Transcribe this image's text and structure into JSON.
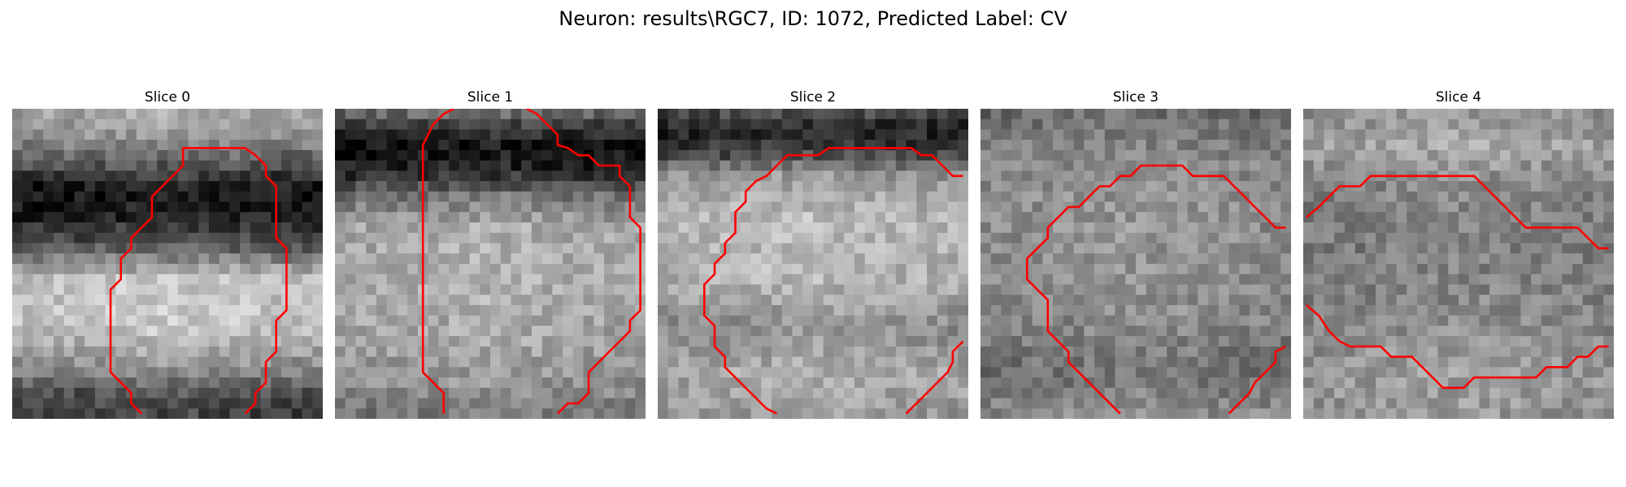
{
  "figure": {
    "title": "Neuron: results\\RGC7, ID: 1072, Predicted Label: CV",
    "contour_color": "#ff0000",
    "image_colormap": "gray"
  },
  "panels": [
    {
      "title": "Slice 0",
      "bands": [
        {
          "y": 0.0,
          "v": 175
        },
        {
          "y": 0.1,
          "v": 150
        },
        {
          "y": 0.18,
          "v": 90
        },
        {
          "y": 0.26,
          "v": 30
        },
        {
          "y": 0.34,
          "v": 35
        },
        {
          "y": 0.44,
          "v": 90
        },
        {
          "y": 0.55,
          "v": 200
        },
        {
          "y": 0.7,
          "v": 205
        },
        {
          "y": 0.83,
          "v": 150
        },
        {
          "y": 0.92,
          "v": 85
        },
        {
          "y": 1.0,
          "v": 70
        }
      ],
      "contours": [
        [
          [
            12.5,
            29.5
          ],
          [
            11.5,
            28.5
          ],
          [
            11.5,
            27.5
          ],
          [
            10.5,
            26.5
          ],
          [
            9.5,
            25.5
          ],
          [
            9.5,
            24.5
          ],
          [
            9.5,
            23.5
          ],
          [
            9.5,
            22.5
          ],
          [
            9.5,
            21.5
          ],
          [
            9.5,
            20.5
          ],
          [
            9.5,
            19.5
          ],
          [
            9.5,
            18.5
          ],
          [
            9.5,
            17.5
          ],
          [
            10.5,
            16.5
          ],
          [
            10.5,
            15.5
          ],
          [
            10.5,
            14.5
          ],
          [
            11.5,
            13.5
          ],
          [
            11.5,
            12.5
          ],
          [
            12.5,
            11.5
          ],
          [
            13.5,
            10.5
          ],
          [
            13.5,
            9.5
          ],
          [
            13.5,
            8.5
          ],
          [
            14.5,
            7.5
          ],
          [
            15.5,
            6.5
          ],
          [
            16.5,
            5.5
          ],
          [
            16.5,
            3.8
          ],
          [
            20.5,
            3.8
          ],
          [
            22.5,
            3.8
          ],
          [
            23.5,
            4.5
          ],
          [
            24.5,
            5.5
          ],
          [
            24.5,
            6.5
          ],
          [
            25.5,
            7.5
          ],
          [
            25.5,
            8.5
          ],
          [
            25.5,
            9.5
          ],
          [
            25.5,
            10.5
          ],
          [
            25.5,
            11.5
          ],
          [
            25.5,
            12.5
          ],
          [
            26.5,
            13.5
          ],
          [
            26.5,
            14.5
          ],
          [
            26.5,
            15.5
          ],
          [
            26.5,
            16.5
          ],
          [
            26.5,
            17.5
          ],
          [
            26.5,
            18.5
          ],
          [
            26.5,
            19.5
          ],
          [
            25.5,
            20.5
          ],
          [
            25.5,
            21.5
          ],
          [
            25.5,
            22.5
          ],
          [
            25.5,
            23.5
          ],
          [
            24.5,
            24.5
          ],
          [
            24.5,
            25.5
          ],
          [
            24.5,
            26.5
          ],
          [
            23.5,
            27.5
          ],
          [
            23.5,
            28.5
          ],
          [
            22.5,
            29.5
          ]
        ]
      ]
    },
    {
      "title": "Slice 1",
      "bands": [
        {
          "y": 0.0,
          "v": 130
        },
        {
          "y": 0.05,
          "v": 70
        },
        {
          "y": 0.12,
          "v": 25
        },
        {
          "y": 0.2,
          "v": 40
        },
        {
          "y": 0.28,
          "v": 120
        },
        {
          "y": 0.38,
          "v": 175
        },
        {
          "y": 0.55,
          "v": 180
        },
        {
          "y": 0.75,
          "v": 170
        },
        {
          "y": 0.9,
          "v": 150
        },
        {
          "y": 1.0,
          "v": 120
        }
      ],
      "contours": [
        [
          [
            10.5,
            29.5
          ],
          [
            10.5,
            27.5
          ],
          [
            9.5,
            26.5
          ],
          [
            8.5,
            25.5
          ],
          [
            8.5,
            23.5
          ],
          [
            8.5,
            20.5
          ],
          [
            8.5,
            15.5
          ],
          [
            8.5,
            10.5
          ],
          [
            8.5,
            5.5
          ],
          [
            8.5,
            3.5
          ],
          [
            9.5,
            1.5
          ],
          [
            10.5,
            0.5
          ],
          [
            11.5,
            0.0
          ]
        ],
        [
          [
            18.5,
            0.0
          ],
          [
            19.5,
            0.5
          ],
          [
            20.5,
            1.5
          ],
          [
            21.5,
            2.5
          ],
          [
            21.5,
            3.5
          ],
          [
            22.5,
            3.8
          ],
          [
            23.5,
            4.5
          ],
          [
            24.5,
            4.5
          ],
          [
            25.5,
            5.5
          ],
          [
            27.5,
            5.5
          ],
          [
            27.5,
            6.5
          ],
          [
            28.5,
            7.5
          ],
          [
            28.5,
            8.5
          ],
          [
            28.5,
            9.5
          ],
          [
            28.5,
            10.5
          ],
          [
            29.5,
            11.5
          ],
          [
            29.5,
            12.5
          ],
          [
            29.5,
            13.5
          ],
          [
            29.5,
            14.5
          ],
          [
            29.5,
            15.5
          ],
          [
            29.5,
            16.5
          ],
          [
            29.5,
            17.5
          ],
          [
            29.5,
            18.5
          ],
          [
            29.5,
            19.5
          ],
          [
            28.5,
            20.5
          ],
          [
            28.5,
            21.5
          ],
          [
            27.5,
            22.5
          ],
          [
            26.5,
            23.5
          ],
          [
            25.5,
            24.5
          ],
          [
            24.5,
            25.5
          ],
          [
            24.5,
            26.5
          ],
          [
            24.5,
            27.5
          ],
          [
            23.5,
            28.5
          ],
          [
            22.5,
            28.5
          ],
          [
            21.5,
            29.5
          ]
        ]
      ]
    },
    {
      "title": "Slice 2",
      "bands": [
        {
          "y": 0.0,
          "v": 90
        },
        {
          "y": 0.07,
          "v": 40
        },
        {
          "y": 0.14,
          "v": 70
        },
        {
          "y": 0.22,
          "v": 160
        },
        {
          "y": 0.35,
          "v": 190
        },
        {
          "y": 0.55,
          "v": 185
        },
        {
          "y": 0.7,
          "v": 150
        },
        {
          "y": 0.85,
          "v": 175
        },
        {
          "y": 1.0,
          "v": 160
        }
      ],
      "contours": [
        [
          [
            11.5,
            29.5
          ],
          [
            10.5,
            29.0
          ],
          [
            9.5,
            28.0
          ],
          [
            8.5,
            27.0
          ],
          [
            7.5,
            26.0
          ],
          [
            6.5,
            25.0
          ],
          [
            6.5,
            24.0
          ],
          [
            5.5,
            23.0
          ],
          [
            5.5,
            22.0
          ],
          [
            5.5,
            21.0
          ],
          [
            4.5,
            20.0
          ],
          [
            4.5,
            19.0
          ],
          [
            4.5,
            18.0
          ],
          [
            4.5,
            17.0
          ],
          [
            5.5,
            16.0
          ],
          [
            5.5,
            15.0
          ],
          [
            6.5,
            14.0
          ],
          [
            6.5,
            13.0
          ],
          [
            7.5,
            12.0
          ],
          [
            7.5,
            11.0
          ],
          [
            7.5,
            10.0
          ],
          [
            8.5,
            9.0
          ],
          [
            8.5,
            8.0
          ],
          [
            9.5,
            7.0
          ],
          [
            10.5,
            6.5
          ],
          [
            11.5,
            5.5
          ],
          [
            12.5,
            4.5
          ],
          [
            15.5,
            4.5
          ],
          [
            16.5,
            3.8
          ],
          [
            17.5,
            3.8
          ],
          [
            24.5,
            3.8
          ],
          [
            25.5,
            4.5
          ],
          [
            26.5,
            4.5
          ],
          [
            27.5,
            5.5
          ],
          [
            28.5,
            6.5
          ],
          [
            29.5,
            6.5
          ]
        ],
        [
          [
            24.0,
            29.5
          ],
          [
            25.0,
            28.5
          ],
          [
            26.0,
            27.5
          ],
          [
            27.0,
            26.5
          ],
          [
            28.0,
            25.5
          ],
          [
            28.5,
            24.5
          ],
          [
            28.5,
            23.5
          ],
          [
            29.5,
            22.5
          ]
        ]
      ]
    },
    {
      "title": "Slice 3",
      "bands": [
        {
          "y": 0.0,
          "v": 110
        },
        {
          "y": 0.1,
          "v": 130
        },
        {
          "y": 0.25,
          "v": 150
        },
        {
          "y": 0.45,
          "v": 150
        },
        {
          "y": 0.65,
          "v": 145
        },
        {
          "y": 0.85,
          "v": 120
        },
        {
          "y": 1.0,
          "v": 150
        }
      ],
      "contours": [
        [
          [
            13.5,
            29.5
          ],
          [
            12.5,
            28.5
          ],
          [
            11.5,
            27.5
          ],
          [
            10.5,
            26.5
          ],
          [
            9.5,
            25.5
          ],
          [
            8.5,
            24.5
          ],
          [
            8.5,
            23.5
          ],
          [
            7.5,
            22.5
          ],
          [
            6.5,
            21.5
          ],
          [
            6.5,
            20.5
          ],
          [
            6.5,
            19.5
          ],
          [
            6.5,
            18.5
          ],
          [
            5.5,
            17.5
          ],
          [
            4.5,
            16.5
          ],
          [
            4.5,
            15.5
          ],
          [
            4.5,
            14.5
          ],
          [
            5.5,
            13.5
          ],
          [
            6.5,
            12.5
          ],
          [
            6.5,
            11.5
          ],
          [
            7.5,
            10.5
          ],
          [
            8.5,
            9.5
          ],
          [
            9.5,
            9.5
          ],
          [
            10.5,
            8.5
          ],
          [
            11.5,
            7.5
          ],
          [
            12.5,
            7.5
          ],
          [
            13.5,
            6.5
          ],
          [
            14.5,
            6.5
          ],
          [
            15.5,
            5.5
          ],
          [
            19.5,
            5.5
          ],
          [
            20.5,
            6.5
          ],
          [
            23.5,
            6.5
          ],
          [
            24.5,
            7.5
          ],
          [
            25.5,
            8.5
          ],
          [
            26.5,
            9.5
          ],
          [
            27.5,
            10.5
          ],
          [
            28.5,
            11.5
          ],
          [
            29.5,
            11.5
          ]
        ],
        [
          [
            24.0,
            29.5
          ],
          [
            25.0,
            28.5
          ],
          [
            26.0,
            27.5
          ],
          [
            26.5,
            26.5
          ],
          [
            27.5,
            25.5
          ],
          [
            28.5,
            24.5
          ],
          [
            28.5,
            23.5
          ],
          [
            29.5,
            23.0
          ]
        ]
      ]
    },
    {
      "title": "Slice 4",
      "bands": [
        {
          "y": 0.0,
          "v": 150
        },
        {
          "y": 0.12,
          "v": 170
        },
        {
          "y": 0.25,
          "v": 140
        },
        {
          "y": 0.45,
          "v": 130
        },
        {
          "y": 0.65,
          "v": 140
        },
        {
          "y": 0.85,
          "v": 160
        },
        {
          "y": 1.0,
          "v": 155
        }
      ],
      "contours": [
        [
          [
            0.3,
            10.5
          ],
          [
            1.5,
            9.5
          ],
          [
            2.5,
            8.5
          ],
          [
            3.5,
            7.5
          ],
          [
            5.5,
            7.5
          ],
          [
            6.5,
            6.5
          ],
          [
            16.5,
            6.5
          ],
          [
            17.5,
            7.5
          ],
          [
            18.5,
            8.5
          ],
          [
            19.5,
            9.5
          ],
          [
            20.5,
            10.5
          ],
          [
            21.5,
            11.5
          ],
          [
            26.5,
            11.5
          ],
          [
            27.5,
            12.5
          ],
          [
            28.5,
            13.5
          ],
          [
            29.5,
            13.5
          ]
        ],
        [
          [
            0.3,
            19.0
          ],
          [
            1.5,
            20.0
          ],
          [
            2.5,
            21.5
          ],
          [
            3.5,
            22.5
          ],
          [
            4.5,
            23.0
          ],
          [
            7.5,
            23.0
          ],
          [
            8.5,
            24.0
          ],
          [
            10.5,
            24.0
          ],
          [
            11.5,
            25.0
          ],
          [
            12.5,
            26.0
          ],
          [
            13.5,
            27.0
          ],
          [
            15.5,
            27.0
          ],
          [
            16.5,
            26.0
          ],
          [
            22.5,
            26.0
          ],
          [
            23.5,
            25.0
          ],
          [
            25.5,
            25.0
          ],
          [
            26.5,
            24.0
          ],
          [
            27.5,
            24.0
          ],
          [
            28.5,
            23.0
          ],
          [
            29.5,
            23.0
          ]
        ]
      ]
    }
  ]
}
